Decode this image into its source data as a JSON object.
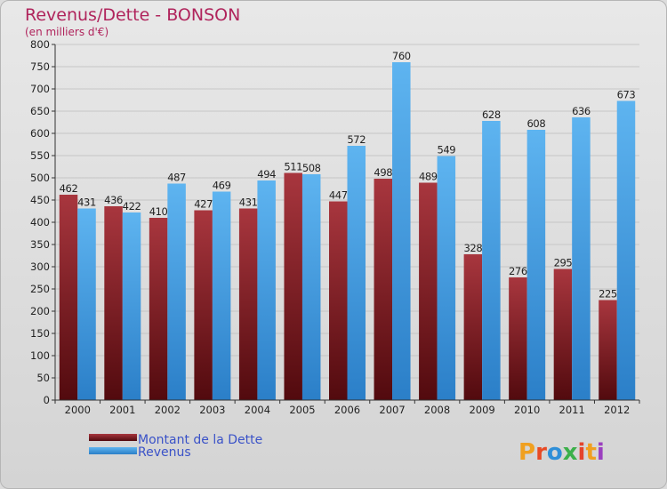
{
  "chart_data": {
    "type": "bar",
    "title": "Revenus/Dette - BONSON",
    "subtitle": "(en milliers d'€)",
    "categories": [
      "2000",
      "2001",
      "2002",
      "2003",
      "2004",
      "2005",
      "2006",
      "2007",
      "2008",
      "2009",
      "2010",
      "2011",
      "2012"
    ],
    "series": [
      {
        "name": "Montant de la Dette",
        "color": "#7a1e22",
        "values": [
          462,
          436,
          410,
          427,
          431,
          511,
          447,
          498,
          489,
          328,
          276,
          295,
          225
        ]
      },
      {
        "name": "Revenus",
        "color": "#3f9ee6",
        "values": [
          431,
          422,
          487,
          469,
          494,
          508,
          572,
          760,
          549,
          628,
          608,
          636,
          673
        ]
      }
    ],
    "ylim": [
      0,
      800
    ],
    "ytick_step": 50,
    "grid": true,
    "legend": "bottom-left"
  },
  "brand": {
    "text": "Proxiti",
    "colors": [
      "#f0a020",
      "#e84a24",
      "#2f8fd8",
      "#3cb04a",
      "#e4442c",
      "#f0a020",
      "#9b3fbf"
    ]
  }
}
